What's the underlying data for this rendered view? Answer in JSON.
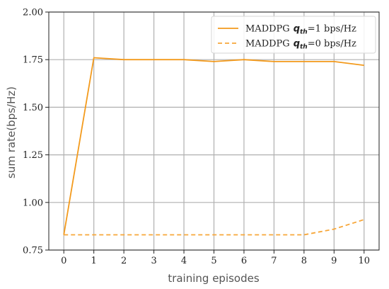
{
  "chart_data": {
    "type": "line",
    "title": "",
    "xlabel": "training episodes",
    "ylabel": "sum rate(bps/Hz)",
    "x": [
      0,
      1,
      2,
      3,
      4,
      5,
      6,
      7,
      8,
      9,
      10
    ],
    "xlim": [
      -0.5,
      10.5
    ],
    "ylim": [
      0.75,
      2.0
    ],
    "xticks": [
      "0",
      "1",
      "2",
      "3",
      "4",
      "5",
      "6",
      "7",
      "8",
      "9",
      "10"
    ],
    "yticks": [
      "0.75",
      "1.00",
      "1.25",
      "1.50",
      "1.75",
      "2.00"
    ],
    "yticks_values": [
      0.75,
      1.0,
      1.25,
      1.5,
      1.75,
      2.0
    ],
    "grid": true,
    "legend_position": "top-right",
    "series": [
      {
        "name": "MADDPG q_th=1 bps/Hz",
        "legend_prefix": "MADDPG",
        "legend_symbol": "q",
        "legend_subscript": "th",
        "legend_suffix": "=1 bps/Hz",
        "style": "solid",
        "color": "#f39a1c",
        "values": [
          0.83,
          1.76,
          1.75,
          1.75,
          1.75,
          1.74,
          1.75,
          1.74,
          1.74,
          1.74,
          1.72
        ]
      },
      {
        "name": "MADDPG q_th=0 bps/Hz",
        "legend_prefix": "MADDPG",
        "legend_symbol": "q",
        "legend_subscript": "th",
        "legend_suffix": "=0 bps/Hz",
        "style": "dashed",
        "color": "#f7a73a",
        "values": [
          0.83,
          0.83,
          0.83,
          0.83,
          0.83,
          0.83,
          0.83,
          0.83,
          0.83,
          0.86,
          0.91
        ]
      }
    ]
  }
}
